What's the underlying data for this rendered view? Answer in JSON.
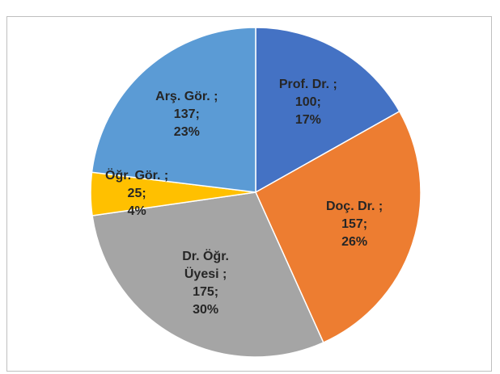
{
  "chart_data": {
    "type": "pie",
    "categories": [
      "Prof. Dr. ;",
      "Doç. Dr. ;",
      "Dr. Öğr. Üyesi ;",
      "Öğr. Gör. ;",
      "Arş. Gör. ;"
    ],
    "values": [
      100,
      157,
      175,
      25,
      137
    ],
    "value_labels": [
      "100;",
      "157;",
      "175;",
      "25;",
      "137;"
    ],
    "percent_labels": [
      "17%",
      "26%",
      "30%",
      "4%",
      "23%"
    ],
    "colors": [
      "#4472c4",
      "#ed7d31",
      "#a5a5a5",
      "#ffc000",
      "#5b9bd5"
    ]
  }
}
